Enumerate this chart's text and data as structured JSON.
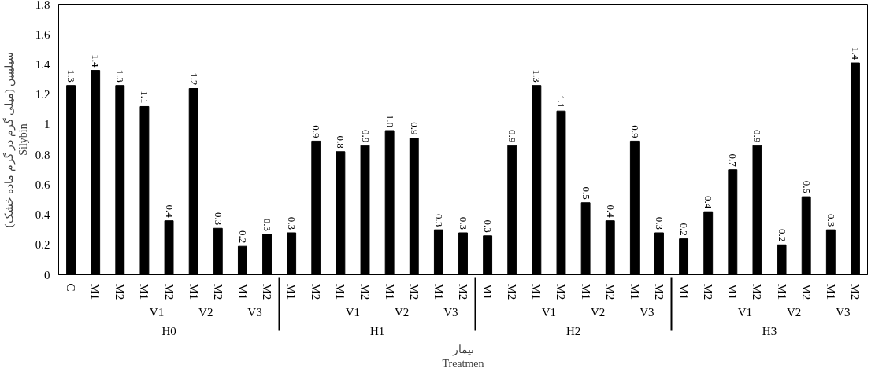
{
  "chart_data": {
    "type": "bar",
    "xlabel": "تیمار\nTreatmen",
    "ylabel": "سیلیبین (میلی گرم در گرم ماده خشک)\nSilybin",
    "categories": [
      "C",
      "M1",
      "M2",
      "M1",
      "M2",
      "M1",
      "M2",
      "M1",
      "M2",
      "M1",
      "M2",
      "M1",
      "M2",
      "M1",
      "M2",
      "M1",
      "M2",
      "M1",
      "M2",
      "M1",
      "M2",
      "M1",
      "M2",
      "M1",
      "M2",
      "M1",
      "M2",
      "M1",
      "M2",
      "M1",
      "M2",
      "M1",
      "M2"
    ],
    "annotations": [
      "H0",
      "V1",
      "V2",
      "V3",
      "H1",
      "V1",
      "V2",
      "V3",
      "H2",
      "V1",
      "V2",
      "V3",
      "H3",
      "V1",
      "V2",
      "V3"
    ],
    "values": [
      1.26,
      1.36,
      1.26,
      1.12,
      0.36,
      1.24,
      0.31,
      0.19,
      0.27,
      0.28,
      0.89,
      0.82,
      0.86,
      0.96,
      0.91,
      0.3,
      0.28,
      0.26,
      0.86,
      1.26,
      1.09,
      0.48,
      0.36,
      0.89,
      0.28,
      0.24,
      0.42,
      0.7,
      0.86,
      0.2,
      0.52,
      0.3,
      1.41
    ],
    "value_labels": [
      "1.3",
      "1.4",
      "1.3",
      "1.1",
      "0.4",
      "1.2",
      "0.3",
      "0.2",
      "0.3",
      "0.3",
      "0.9",
      "0.8",
      "0.9",
      "1.0",
      "0.9",
      "0.3",
      "0.3",
      "0.3",
      "0.9",
      "1.3",
      "1.1",
      "0.5",
      "0.4",
      "0.9",
      "0.3",
      "0.2",
      "0.4",
      "0.7",
      "0.9",
      "0.2",
      "0.5",
      "0.3",
      "1.4"
    ],
    "color": "#000000",
    "ylim": [
      0,
      1.8
    ],
    "yticks": [
      0,
      0.2,
      0.4,
      0.6,
      0.8,
      1,
      1.2,
      1.4,
      1.6,
      1.8
    ],
    "grid": false
  }
}
